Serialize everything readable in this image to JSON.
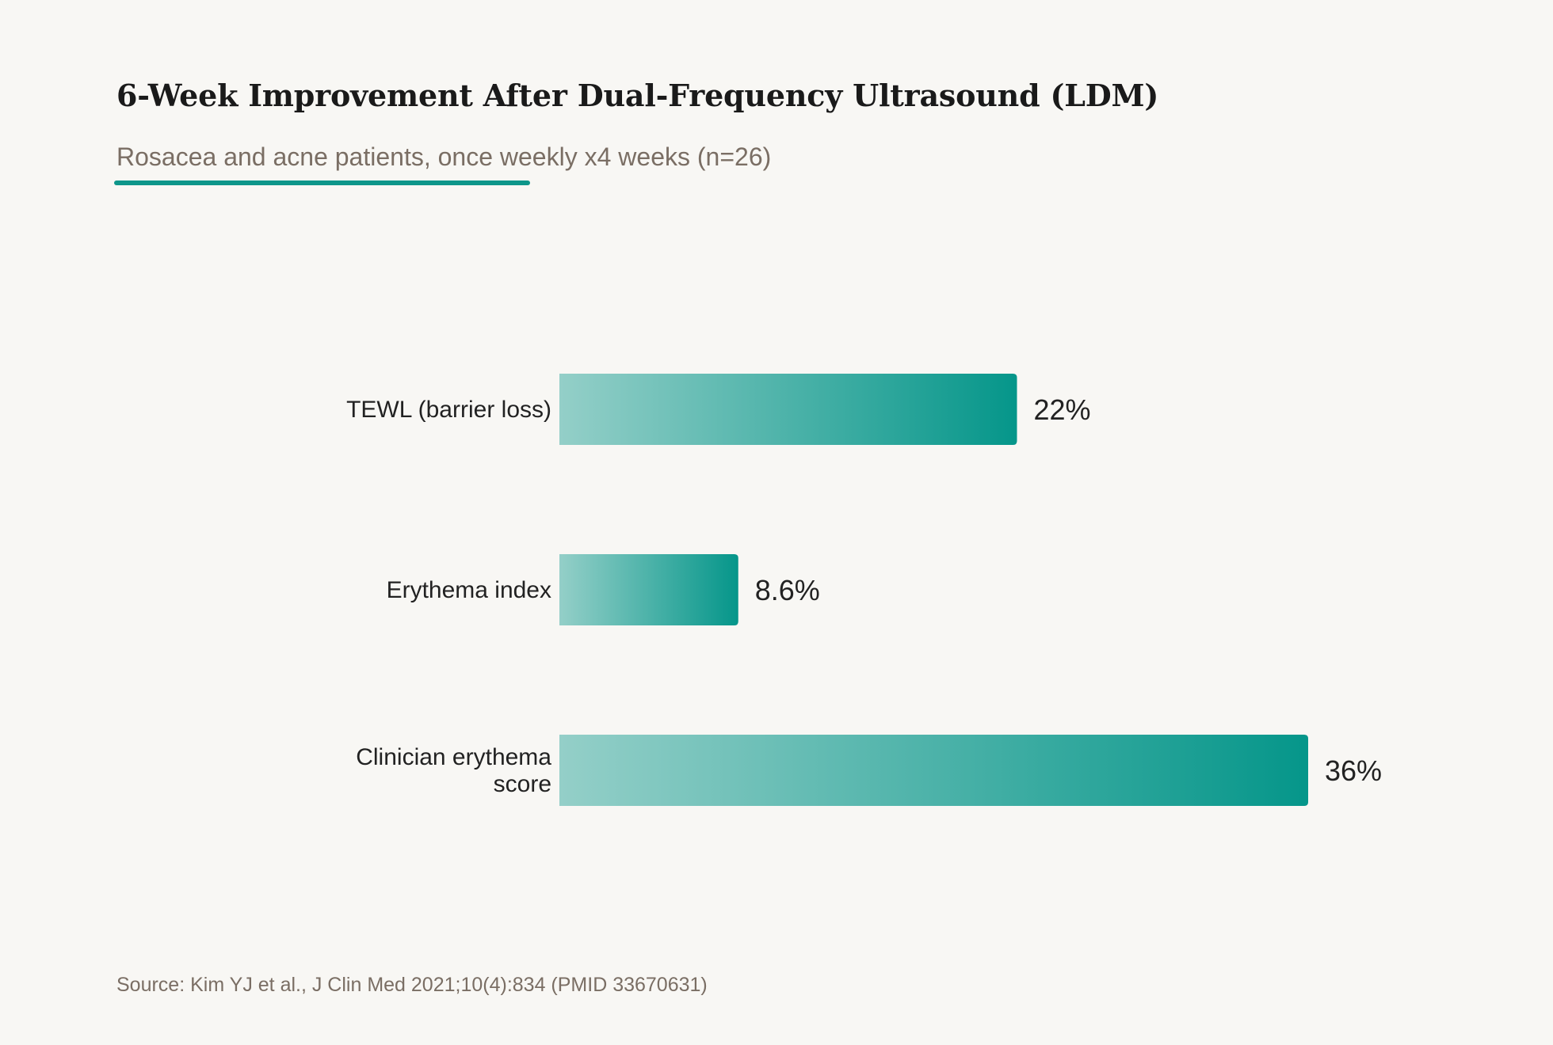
{
  "title": "6-Week Improvement After Dual-Frequency Ultrasound (LDM)",
  "subtitle": "Rosacea and acne patients, once weekly x4 weeks (n=26)",
  "source": "Source: Kim YJ et al., J Clin Med 2021;10(4):834 (PMID 33670631)",
  "colors": {
    "background": "#f8f7f4",
    "accent": "#0e968a",
    "bar_start": "#94cfc8",
    "bar_end": "#05968a",
    "title": "#1a1a1a",
    "muted_text": "#7a6e64"
  },
  "chart_data": {
    "type": "bar",
    "orientation": "horizontal",
    "categories": [
      "TEWL (barrier loss)",
      "Erythema index",
      "Clinician erythema score"
    ],
    "category_lines": [
      [
        "TEWL (barrier loss)"
      ],
      [
        "Erythema index"
      ],
      [
        "Clinician erythema",
        "score"
      ]
    ],
    "values": [
      22,
      8.6,
      36
    ],
    "value_labels": [
      "22%",
      "8.6%",
      "36%"
    ],
    "unit": "%",
    "xlim": [
      0,
      36
    ],
    "grid": false,
    "legend": "none"
  }
}
